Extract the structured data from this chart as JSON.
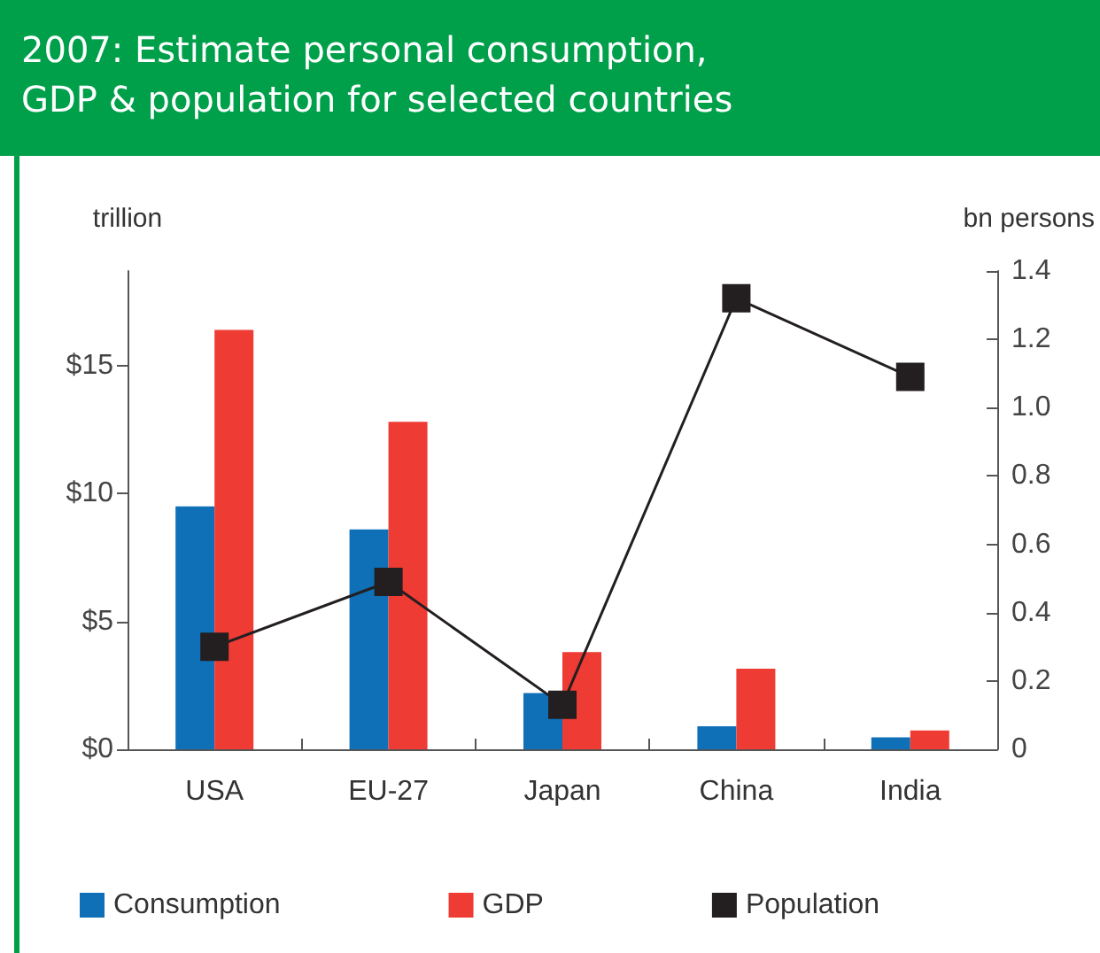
{
  "chart_data": {
    "type": "bar",
    "title": "2007: Estimate personal consumption,\nGDP & population for selected countries",
    "categories": [
      "USA",
      "EU-27",
      "Japan",
      "China",
      "India"
    ],
    "ylabel": "trillion",
    "y2label": "bn persons",
    "series": [
      {
        "name": "Consumption",
        "color": "#0f70b7",
        "values": [
          9.5,
          8.6,
          2.2,
          0.9,
          0.47
        ]
      },
      {
        "name": "GDP",
        "color": "#ee3b33",
        "values": [
          16.4,
          12.8,
          3.8,
          3.15,
          0.74
        ]
      },
      {
        "name": "Population",
        "type": "line",
        "axis": "y2",
        "color": "#231f20",
        "marker": "square",
        "values": [
          0.3,
          0.49,
          0.13,
          1.32,
          1.09
        ]
      }
    ],
    "ylim": [
      0,
      18.7
    ],
    "yticks": [
      {
        "value": 0,
        "label": "$0"
      },
      {
        "value": 5,
        "label": "$5"
      },
      {
        "value": 10,
        "label": "$10"
      },
      {
        "value": 15,
        "label": "$15"
      }
    ],
    "y2lim": [
      0,
      1.4
    ],
    "y2ticks": [
      0,
      0.2,
      0.4,
      0.6,
      0.8,
      {
        "value": 1,
        "label": "1.0"
      },
      1.2,
      1.4
    ],
    "grid": false,
    "legend": "bottom"
  }
}
